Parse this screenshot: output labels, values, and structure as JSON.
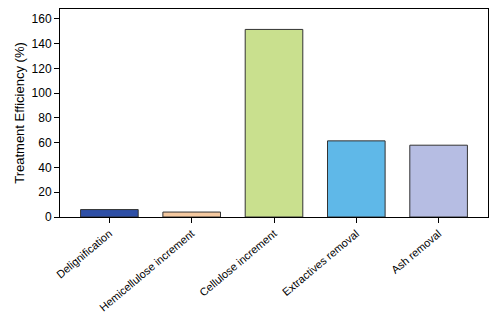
{
  "chart_data": {
    "type": "bar",
    "categories": [
      "Delignification",
      "Hemicellulose increment",
      "Cellulose increment",
      "Extractives removal",
      "Ash removal"
    ],
    "values": [
      6,
      4,
      151.5,
      61.5,
      58
    ],
    "colors": [
      "#2e4fa6",
      "#f5c9a0",
      "#c9e08e",
      "#5fb8e8",
      "#b6bde3"
    ],
    "y_label": "Treatment Efficiency (%)",
    "ylim": [
      0,
      168
    ],
    "yticks": [
      0,
      20,
      40,
      60,
      80,
      100,
      120,
      140,
      160
    ],
    "grid": false
  }
}
